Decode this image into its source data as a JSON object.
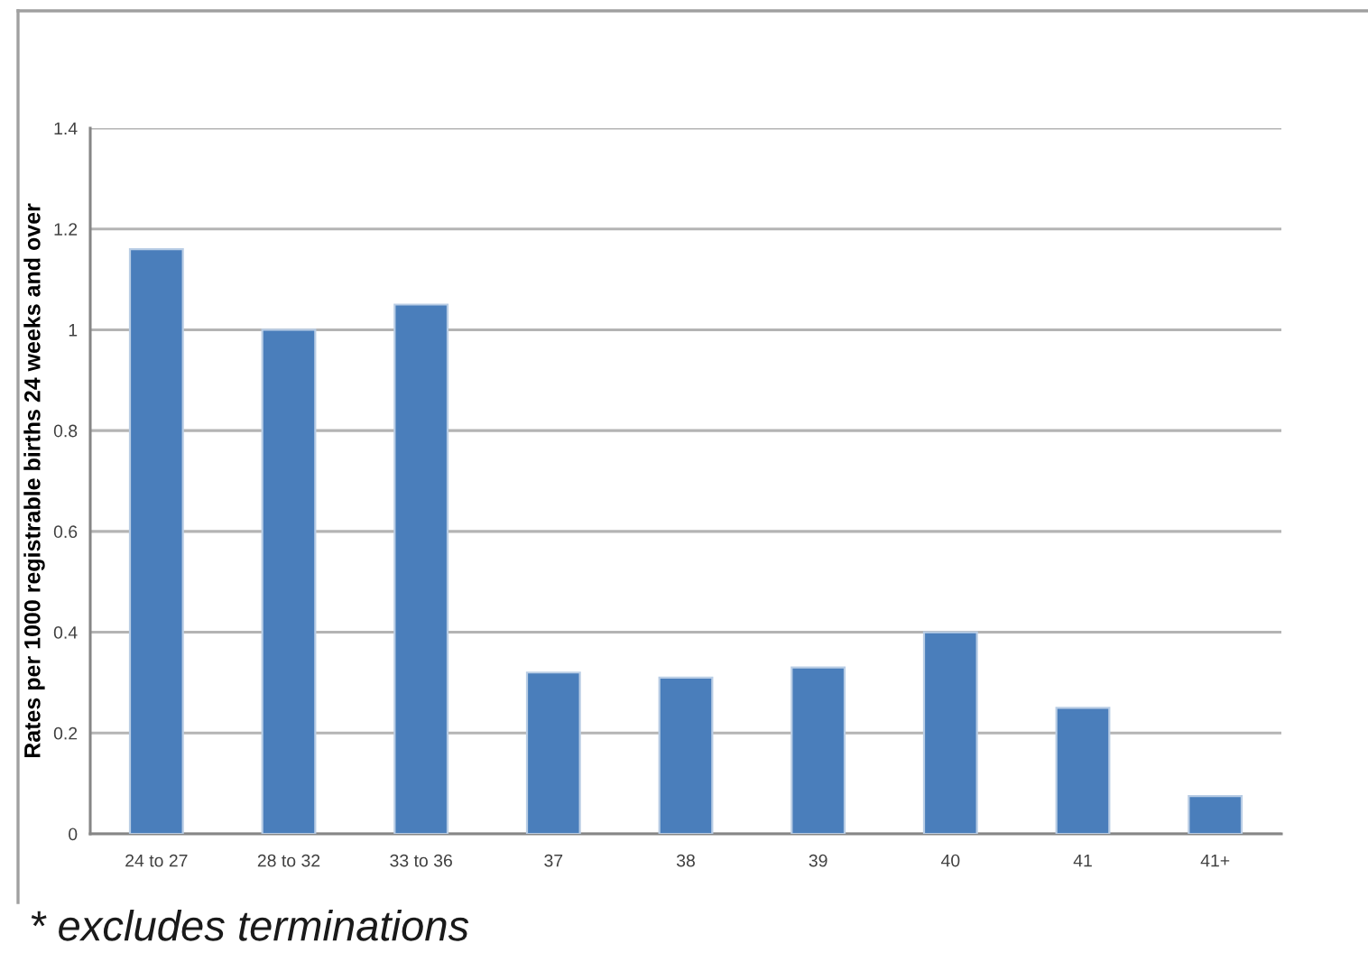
{
  "chart_data": {
    "type": "bar",
    "ylabel": "Rates per 1000 registrable births 24 weeks and over",
    "categories": [
      "24 to 27",
      "28 to 32",
      "33 to 36",
      "37",
      "38",
      "39",
      "40",
      "41",
      "41+"
    ],
    "values": [
      1.16,
      1.0,
      1.05,
      0.32,
      0.31,
      0.33,
      0.4,
      0.25,
      0.075
    ],
    "color": "#4a7ebb",
    "ylim": [
      0,
      1.4
    ],
    "yticks": [
      0,
      0.2,
      0.4,
      0.6,
      0.8,
      1,
      1.2,
      1.4
    ],
    "grid": "y",
    "annotations": [
      "* excludes terminations"
    ]
  }
}
